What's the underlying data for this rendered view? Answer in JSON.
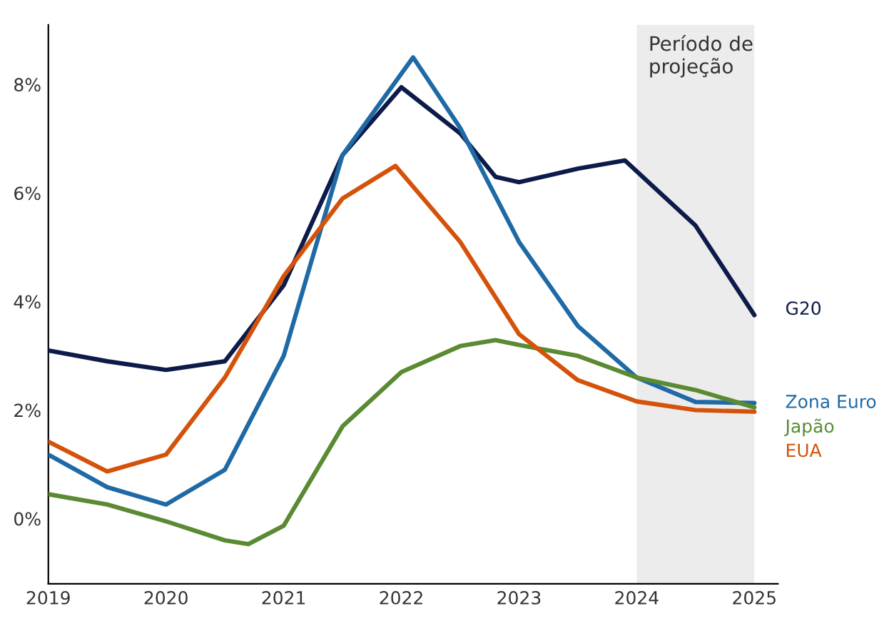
{
  "chart_data": {
    "type": "line",
    "series": [
      {
        "name": "G20",
        "color": "#0d1b4a",
        "x": [
          2019,
          2019.5,
          2020,
          2020.5,
          2021,
          2021.5,
          2022,
          2022.5,
          2022.8,
          2023,
          2023.5,
          2023.9,
          2024.5,
          2025
        ],
        "values": [
          3.1,
          2.9,
          2.74,
          2.9,
          4.3,
          6.7,
          7.95,
          7.1,
          6.3,
          6.2,
          6.45,
          6.6,
          5.4,
          3.75
        ]
      },
      {
        "name": "Zona Euro",
        "color": "#1f6aa5",
        "x": [
          2019,
          2019.5,
          2020,
          2020.5,
          2021,
          2021.5,
          2022.1,
          2022.5,
          2023,
          2023.5,
          2024,
          2024.5,
          2025
        ],
        "values": [
          1.18,
          0.58,
          0.26,
          0.9,
          3.0,
          6.7,
          8.5,
          7.2,
          5.1,
          3.55,
          2.6,
          2.15,
          2.13
        ]
      },
      {
        "name": "Japão",
        "color": "#5a8a32",
        "x": [
          2019,
          2019.5,
          2020,
          2020.5,
          2020.7,
          2021,
          2021.5,
          2022,
          2022.5,
          2022.8,
          2023,
          2023.5,
          2024,
          2024.5,
          2025
        ],
        "values": [
          0.45,
          0.26,
          -0.05,
          -0.4,
          -0.47,
          -0.13,
          1.7,
          2.7,
          3.18,
          3.29,
          3.2,
          3.0,
          2.6,
          2.37,
          2.05
        ]
      },
      {
        "name": "EUA",
        "color": "#d4520a",
        "x": [
          2019,
          2019.5,
          2020,
          2020.5,
          2021,
          2021.5,
          2021.95,
          2022.5,
          2023,
          2023.5,
          2024,
          2024.5,
          2025
        ],
        "values": [
          1.42,
          0.87,
          1.18,
          2.6,
          4.47,
          5.9,
          6.5,
          5.1,
          3.4,
          2.55,
          2.16,
          2.0,
          1.97
        ]
      }
    ],
    "xlim": [
      2019,
      2025.2
    ],
    "xticks": [
      2019,
      2020,
      2021,
      2022,
      2023,
      2024,
      2025
    ],
    "ylim": [
      -1.2,
      9.1
    ],
    "yticks": [
      {
        "value": 0,
        "label": "0%"
      },
      {
        "value": 2,
        "label": "2%"
      },
      {
        "value": 4,
        "label": "4%"
      },
      {
        "value": 6,
        "label": "6%"
      },
      {
        "value": 8,
        "label": "8%"
      }
    ],
    "bands": [
      {
        "axis": "x",
        "from": 2024,
        "to": 2025,
        "label": "Período de projeção",
        "color": "#ececec"
      }
    ],
    "grid": false,
    "legend": false,
    "line_style": "solid",
    "marker": "none"
  }
}
